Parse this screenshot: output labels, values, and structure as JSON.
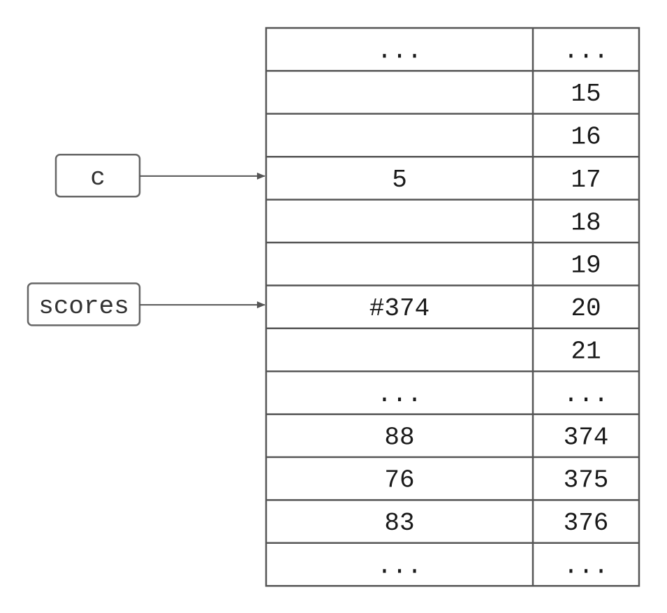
{
  "memory_table": {
    "rows": [
      {
        "value": "...",
        "address": "..."
      },
      {
        "value": "",
        "address": "15"
      },
      {
        "value": "",
        "address": "16"
      },
      {
        "value": "5",
        "address": "17"
      },
      {
        "value": "",
        "address": "18"
      },
      {
        "value": "",
        "address": "19"
      },
      {
        "value": "#374",
        "address": "20"
      },
      {
        "value": "",
        "address": "21"
      },
      {
        "value": "...",
        "address": "..."
      },
      {
        "value": "88",
        "address": "374"
      },
      {
        "value": "76",
        "address": "375"
      },
      {
        "value": "83",
        "address": "376"
      },
      {
        "value": "...",
        "address": "..."
      }
    ]
  },
  "variables": [
    {
      "name": "c",
      "points_to_row": 3
    },
    {
      "name": "scores",
      "points_to_row": 6
    }
  ],
  "colors": {
    "grid": "#555555",
    "box_border": "#666666",
    "arrow": "#555555",
    "text": "#1a1a1a"
  }
}
